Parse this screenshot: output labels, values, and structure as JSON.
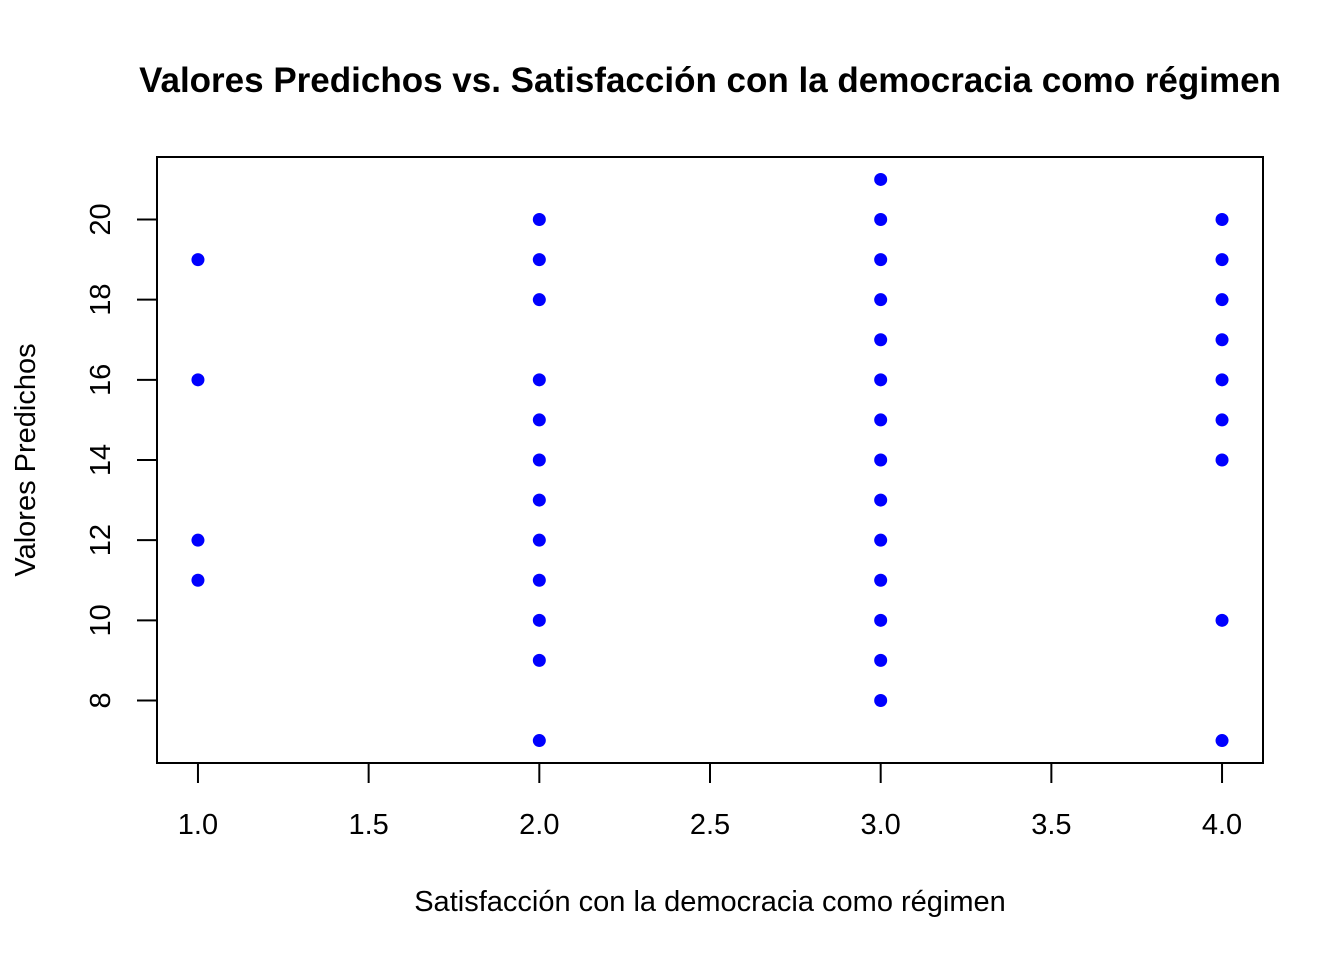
{
  "chart_data": {
    "type": "scatter",
    "title": "Valores Predichos vs. Satisfacción con la democracia como régimen",
    "xlabel": "Satisfacción con la democracia como régimen",
    "ylabel": "Valores Predichos",
    "xlim": [
      0.88,
      4.12
    ],
    "ylim": [
      6.44,
      21.56
    ],
    "x_ticks": [
      "1.0",
      "1.5",
      "2.0",
      "2.5",
      "3.0",
      "3.5",
      "4.0"
    ],
    "y_ticks": [
      "8",
      "10",
      "12",
      "14",
      "16",
      "18",
      "20"
    ],
    "grid": false,
    "point_color": "#0000FF",
    "points": [
      {
        "x": 1,
        "y": 19
      },
      {
        "x": 1,
        "y": 16
      },
      {
        "x": 1,
        "y": 12
      },
      {
        "x": 1,
        "y": 11
      },
      {
        "x": 2,
        "y": 20
      },
      {
        "x": 2,
        "y": 19
      },
      {
        "x": 2,
        "y": 18
      },
      {
        "x": 2,
        "y": 16
      },
      {
        "x": 2,
        "y": 15
      },
      {
        "x": 2,
        "y": 14
      },
      {
        "x": 2,
        "y": 13
      },
      {
        "x": 2,
        "y": 12
      },
      {
        "x": 2,
        "y": 11
      },
      {
        "x": 2,
        "y": 10
      },
      {
        "x": 2,
        "y": 9
      },
      {
        "x": 2,
        "y": 7
      },
      {
        "x": 3,
        "y": 21
      },
      {
        "x": 3,
        "y": 20
      },
      {
        "x": 3,
        "y": 19
      },
      {
        "x": 3,
        "y": 18
      },
      {
        "x": 3,
        "y": 17
      },
      {
        "x": 3,
        "y": 16
      },
      {
        "x": 3,
        "y": 15
      },
      {
        "x": 3,
        "y": 14
      },
      {
        "x": 3,
        "y": 13
      },
      {
        "x": 3,
        "y": 12
      },
      {
        "x": 3,
        "y": 11
      },
      {
        "x": 3,
        "y": 10
      },
      {
        "x": 3,
        "y": 9
      },
      {
        "x": 3,
        "y": 8
      },
      {
        "x": 4,
        "y": 20
      },
      {
        "x": 4,
        "y": 19
      },
      {
        "x": 4,
        "y": 18
      },
      {
        "x": 4,
        "y": 17
      },
      {
        "x": 4,
        "y": 16
      },
      {
        "x": 4,
        "y": 15
      },
      {
        "x": 4,
        "y": 14
      },
      {
        "x": 4,
        "y": 10
      },
      {
        "x": 4,
        "y": 7
      }
    ]
  }
}
